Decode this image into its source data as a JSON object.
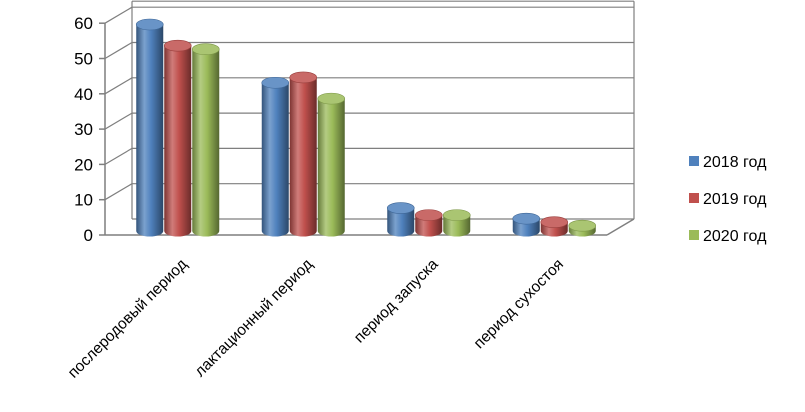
{
  "chart_data": {
    "type": "bar",
    "categories": [
      "послеродовый период",
      "лактационный период",
      "период запуска",
      "период сухостоя"
    ],
    "series": [
      {
        "name": "2018 год",
        "color": "#4F81BD",
        "values": [
          58.5,
          42,
          6.5,
          3.5
        ]
      },
      {
        "name": "2019 год",
        "color": "#C0504D",
        "values": [
          52.5,
          43.5,
          4.5,
          2.5
        ]
      },
      {
        "name": "2020 год",
        "color": "#9BBB59",
        "values": [
          51.5,
          37.5,
          4.5,
          1.5
        ]
      }
    ],
    "yticks": [
      "0",
      "10",
      "20",
      "30",
      "40",
      "50",
      "60"
    ],
    "ylim": [
      0,
      60
    ],
    "grid": true,
    "legend_position": "right"
  }
}
